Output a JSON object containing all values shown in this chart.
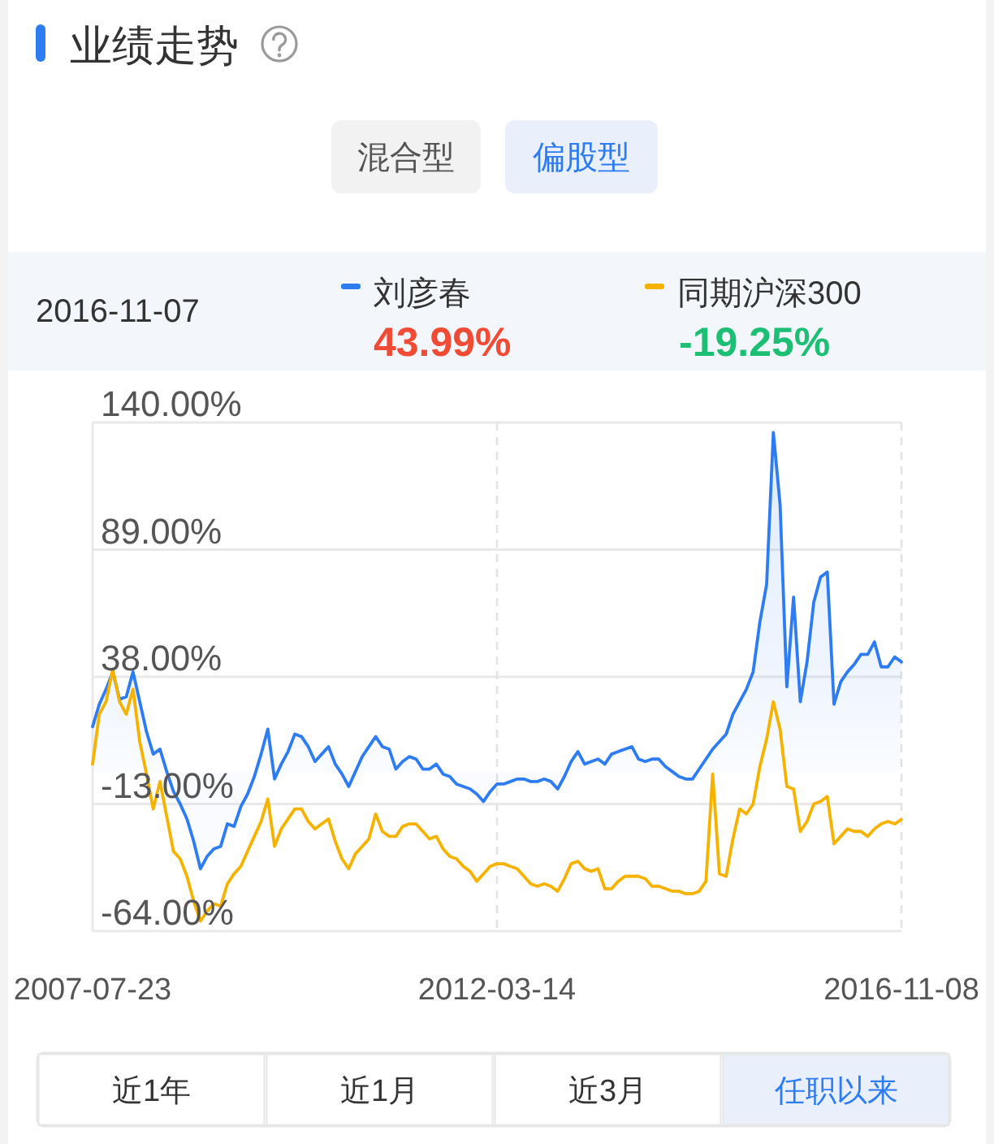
{
  "chart_data": {
    "type": "line",
    "title": "业绩走势",
    "categories": [
      "2007-07-23",
      null,
      null,
      null,
      null,
      null,
      null,
      null,
      null,
      null,
      null,
      null,
      null,
      null,
      null,
      null,
      null,
      null,
      null,
      null,
      null,
      null,
      null,
      null,
      null,
      null,
      null,
      null,
      null,
      null,
      null,
      null,
      null,
      null,
      null,
      null,
      null,
      null,
      null,
      null,
      null,
      null,
      null,
      null,
      null,
      null,
      null,
      null,
      null,
      null,
      null,
      null,
      null,
      null,
      null,
      null,
      null,
      null,
      null,
      null,
      "2012-03-14",
      null,
      null,
      null,
      null,
      null,
      null,
      null,
      null,
      null,
      null,
      null,
      null,
      null,
      null,
      null,
      null,
      null,
      null,
      null,
      null,
      null,
      null,
      null,
      null,
      null,
      null,
      null,
      null,
      null,
      null,
      null,
      null,
      null,
      null,
      null,
      null,
      null,
      null,
      null,
      null,
      null,
      null,
      null,
      null,
      null,
      null,
      null,
      null,
      null,
      null,
      null,
      null,
      null,
      null,
      null,
      null,
      null,
      null,
      null,
      "2016-11-08"
    ],
    "series": [
      {
        "name": "刘彦春",
        "type": "area",
        "color": "#2d7cf2",
        "values": [
          18,
          27,
          33,
          40,
          29,
          30,
          40,
          28,
          16,
          7,
          9,
          0,
          -8,
          -13,
          -19,
          -28,
          -39,
          -34,
          -31,
          -30,
          -21,
          -22,
          -14,
          -9,
          -2,
          7,
          17,
          -3,
          3,
          8,
          15,
          14,
          10,
          4,
          7,
          10,
          3,
          -1,
          -6,
          0,
          6,
          10,
          14,
          10,
          9,
          1,
          4,
          6,
          5,
          1,
          1,
          3,
          -1,
          -2,
          -5,
          -6,
          -7,
          -9,
          -12,
          -8,
          -5,
          -5,
          -4,
          -3,
          -3,
          -4,
          -4,
          -3,
          -4,
          -7,
          -2,
          4,
          8,
          3,
          4,
          5,
          3,
          7,
          8,
          9,
          10,
          5,
          4,
          5,
          5,
          2,
          0,
          -2,
          -3,
          -3,
          1,
          5,
          9,
          12,
          15,
          23,
          28,
          33,
          40,
          60,
          75,
          136,
          107,
          34,
          70,
          28,
          44,
          68,
          78,
          80,
          27,
          36,
          40,
          43,
          47,
          47,
          52,
          42,
          42,
          46,
          43.99
        ]
      },
      {
        "name": "同期沪深300",
        "type": "line",
        "color": "#f5b300",
        "values": [
          3,
          23,
          28,
          41,
          28,
          23,
          33,
          12,
          -1,
          -15,
          -4,
          -18,
          -32,
          -35,
          -42,
          -52,
          -60,
          -56,
          -53,
          -54,
          -45,
          -41,
          -38,
          -32,
          -26,
          -20,
          -11,
          -30,
          -23,
          -19,
          -15,
          -15,
          -20,
          -23,
          -21,
          -19,
          -28,
          -35,
          -39,
          -33,
          -30,
          -27,
          -17,
          -24,
          -26,
          -26,
          -22,
          -21,
          -21,
          -24,
          -27,
          -26,
          -31,
          -34,
          -35,
          -38,
          -40,
          -44,
          -41,
          -38,
          -37,
          -37,
          -38,
          -39,
          -42,
          -45,
          -46,
          -45,
          -46,
          -48,
          -43,
          -37,
          -36,
          -39,
          -40,
          -39,
          -47,
          -47,
          -44,
          -42,
          -42,
          -42,
          -43,
          -46,
          -46,
          -47,
          -48,
          -48,
          -49,
          -49,
          -48,
          -44,
          -1,
          -41,
          -42,
          -27,
          -15,
          -17,
          -13,
          2,
          13,
          28,
          17,
          -6,
          -7,
          -24,
          -20,
          -13,
          -12,
          -10,
          -29,
          -26,
          -23,
          -24,
          -24,
          -26,
          -23,
          -21,
          -20,
          -21,
          -19.25
        ]
      }
    ],
    "ylim": [
      -64,
      140
    ],
    "yticks": [
      {
        "value": -64,
        "label": "-64.00%"
      },
      {
        "value": -13,
        "label": "-13.00%"
      },
      {
        "value": 38,
        "label": "38.00%"
      },
      {
        "value": 89,
        "label": "89.00%"
      },
      {
        "value": 140,
        "label": "140.00%"
      }
    ],
    "grid": true,
    "legend": "top",
    "annotations": [
      "混合型",
      "偏股型",
      "2016-11-07",
      "43.99%",
      "-19.25%",
      "近1年",
      "近1月",
      "近3月",
      "任职以来"
    ]
  }
}
